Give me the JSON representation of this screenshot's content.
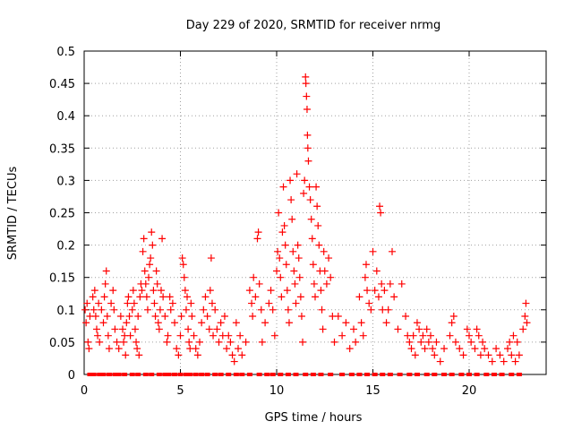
{
  "chart_data": {
    "type": "scatter",
    "title": "Day 229 of 2020, SRMTID for receiver nrmg",
    "xlabel": "GPS time / hours",
    "ylabel": "SRMTID / TECUs",
    "xlim": [
      0,
      24
    ],
    "ylim": [
      0,
      0.5
    ],
    "x_ticks": [
      0,
      5,
      10,
      15,
      20
    ],
    "x_tick_labels": [
      "0",
      "5",
      "10",
      "15",
      "20"
    ],
    "y_ticks": [
      0,
      0.05,
      0.1,
      0.15,
      0.2,
      0.25,
      0.3,
      0.35,
      0.4,
      0.45,
      0.5
    ],
    "y_tick_labels": [
      "0",
      "0.05",
      "0.1",
      "0.15",
      "0.2",
      "0.25",
      "0.3",
      "0.35",
      "0.4",
      "0.45",
      "0.5"
    ],
    "grid": true,
    "series": [
      {
        "name": "SRMTID",
        "marker": "+",
        "color": "#ff0000",
        "points": [
          [
            0.05,
            0.1
          ],
          [
            0.1,
            0.08
          ],
          [
            0.15,
            0.11
          ],
          [
            0.2,
            0.05
          ],
          [
            0.25,
            0.04
          ],
          [
            0.3,
            0.09
          ],
          [
            0.45,
            0.12
          ],
          [
            0.5,
            0.1
          ],
          [
            0.55,
            0.13
          ],
          [
            0.6,
            0.09
          ],
          [
            0.65,
            0.07
          ],
          [
            0.7,
            0.06
          ],
          [
            0.75,
            0.11
          ],
          [
            0.8,
            0.05
          ],
          [
            0.9,
            0.1
          ],
          [
            1.0,
            0.08
          ],
          [
            1.05,
            0.12
          ],
          [
            1.1,
            0.14
          ],
          [
            1.15,
            0.16
          ],
          [
            1.2,
            0.09
          ],
          [
            1.25,
            0.06
          ],
          [
            1.3,
            0.04
          ],
          [
            1.4,
            0.11
          ],
          [
            1.5,
            0.13
          ],
          [
            1.55,
            0.1
          ],
          [
            1.6,
            0.07
          ],
          [
            1.7,
            0.05
          ],
          [
            1.8,
            0.04
          ],
          [
            1.9,
            0.09
          ],
          [
            2.0,
            0.07
          ],
          [
            2.05,
            0.05
          ],
          [
            2.1,
            0.06
          ],
          [
            2.15,
            0.03
          ],
          [
            2.2,
            0.08
          ],
          [
            2.25,
            0.11
          ],
          [
            2.3,
            0.12
          ],
          [
            2.35,
            0.09
          ],
          [
            2.4,
            0.06
          ],
          [
            2.5,
            0.1
          ],
          [
            2.55,
            0.13
          ],
          [
            2.6,
            0.11
          ],
          [
            2.65,
            0.07
          ],
          [
            2.7,
            0.05
          ],
          [
            2.75,
            0.04
          ],
          [
            2.8,
            0.09
          ],
          [
            2.85,
            0.03
          ],
          [
            2.9,
            0.12
          ],
          [
            2.95,
            0.14
          ],
          [
            3.0,
            0.13
          ],
          [
            3.05,
            0.19
          ],
          [
            3.1,
            0.21
          ],
          [
            3.15,
            0.16
          ],
          [
            3.2,
            0.14
          ],
          [
            3.25,
            0.12
          ],
          [
            3.3,
            0.1
          ],
          [
            3.35,
            0.15
          ],
          [
            3.4,
            0.17
          ],
          [
            3.45,
            0.18
          ],
          [
            3.5,
            0.22
          ],
          [
            3.55,
            0.2
          ],
          [
            3.6,
            0.13
          ],
          [
            3.65,
            0.11
          ],
          [
            3.7,
            0.09
          ],
          [
            3.75,
            0.16
          ],
          [
            3.8,
            0.14
          ],
          [
            3.85,
            0.08
          ],
          [
            3.9,
            0.07
          ],
          [
            3.95,
            0.1
          ],
          [
            4.0,
            0.13
          ],
          [
            4.05,
            0.21
          ],
          [
            4.1,
            0.12
          ],
          [
            4.2,
            0.09
          ],
          [
            4.3,
            0.05
          ],
          [
            4.35,
            0.06
          ],
          [
            4.45,
            0.12
          ],
          [
            4.5,
            0.1
          ],
          [
            4.6,
            0.11
          ],
          [
            4.7,
            0.08
          ],
          [
            4.8,
            0.04
          ],
          [
            4.9,
            0.03
          ],
          [
            5.0,
            0.06
          ],
          [
            5.05,
            0.09
          ],
          [
            5.1,
            0.18
          ],
          [
            5.15,
            0.17
          ],
          [
            5.2,
            0.15
          ],
          [
            5.25,
            0.13
          ],
          [
            5.3,
            0.1
          ],
          [
            5.35,
            0.12
          ],
          [
            5.4,
            0.07
          ],
          [
            5.45,
            0.05
          ],
          [
            5.5,
            0.04
          ],
          [
            5.55,
            0.11
          ],
          [
            5.6,
            0.09
          ],
          [
            5.7,
            0.06
          ],
          [
            5.8,
            0.04
          ],
          [
            5.9,
            0.03
          ],
          [
            6.0,
            0.05
          ],
          [
            6.1,
            0.08
          ],
          [
            6.2,
            0.1
          ],
          [
            6.3,
            0.12
          ],
          [
            6.4,
            0.09
          ],
          [
            6.5,
            0.07
          ],
          [
            6.55,
            0.13
          ],
          [
            6.6,
            0.18
          ],
          [
            6.65,
            0.11
          ],
          [
            6.7,
            0.06
          ],
          [
            6.8,
            0.1
          ],
          [
            6.9,
            0.07
          ],
          [
            7.0,
            0.05
          ],
          [
            7.1,
            0.08
          ],
          [
            7.2,
            0.06
          ],
          [
            7.3,
            0.09
          ],
          [
            7.4,
            0.04
          ],
          [
            7.5,
            0.06
          ],
          [
            7.6,
            0.05
          ],
          [
            7.7,
            0.03
          ],
          [
            7.8,
            0.02
          ],
          [
            7.9,
            0.08
          ],
          [
            8.0,
            0.04
          ],
          [
            8.1,
            0.06
          ],
          [
            8.2,
            0.03
          ],
          [
            8.4,
            0.05
          ],
          [
            8.6,
            0.13
          ],
          [
            8.7,
            0.11
          ],
          [
            8.75,
            0.09
          ],
          [
            8.8,
            0.15
          ],
          [
            8.9,
            0.12
          ],
          [
            9.0,
            0.21
          ],
          [
            9.05,
            0.22
          ],
          [
            9.1,
            0.14
          ],
          [
            9.2,
            0.1
          ],
          [
            9.25,
            0.05
          ],
          [
            9.4,
            0.08
          ],
          [
            9.6,
            0.11
          ],
          [
            9.7,
            0.13
          ],
          [
            9.8,
            0.1
          ],
          [
            9.9,
            0.06
          ],
          [
            10.0,
            0.16
          ],
          [
            10.05,
            0.19
          ],
          [
            10.1,
            0.25
          ],
          [
            10.15,
            0.18
          ],
          [
            10.2,
            0.15
          ],
          [
            10.25,
            0.12
          ],
          [
            10.3,
            0.22
          ],
          [
            10.35,
            0.29
          ],
          [
            10.4,
            0.23
          ],
          [
            10.45,
            0.2
          ],
          [
            10.5,
            0.17
          ],
          [
            10.55,
            0.13
          ],
          [
            10.6,
            0.1
          ],
          [
            10.65,
            0.08
          ],
          [
            10.7,
            0.3
          ],
          [
            10.75,
            0.27
          ],
          [
            10.8,
            0.24
          ],
          [
            10.85,
            0.19
          ],
          [
            10.9,
            0.16
          ],
          [
            10.95,
            0.14
          ],
          [
            11.0,
            0.11
          ],
          [
            11.05,
            0.31
          ],
          [
            11.1,
            0.2
          ],
          [
            11.15,
            0.18
          ],
          [
            11.2,
            0.15
          ],
          [
            11.25,
            0.12
          ],
          [
            11.3,
            0.09
          ],
          [
            11.35,
            0.05
          ],
          [
            11.4,
            0.28
          ],
          [
            11.45,
            0.3
          ],
          [
            11.5,
            0.46
          ],
          [
            11.52,
            0.45
          ],
          [
            11.55,
            0.43
          ],
          [
            11.58,
            0.41
          ],
          [
            11.6,
            0.37
          ],
          [
            11.62,
            0.35
          ],
          [
            11.65,
            0.33
          ],
          [
            11.7,
            0.29
          ],
          [
            11.75,
            0.27
          ],
          [
            11.8,
            0.24
          ],
          [
            11.85,
            0.21
          ],
          [
            11.9,
            0.17
          ],
          [
            11.95,
            0.14
          ],
          [
            12.0,
            0.12
          ],
          [
            12.05,
            0.29
          ],
          [
            12.1,
            0.26
          ],
          [
            12.15,
            0.23
          ],
          [
            12.2,
            0.2
          ],
          [
            12.25,
            0.16
          ],
          [
            12.3,
            0.13
          ],
          [
            12.35,
            0.1
          ],
          [
            12.4,
            0.07
          ],
          [
            12.45,
            0.19
          ],
          [
            12.5,
            0.16
          ],
          [
            12.6,
            0.14
          ],
          [
            12.7,
            0.18
          ],
          [
            12.8,
            0.15
          ],
          [
            12.9,
            0.09
          ],
          [
            13.0,
            0.05
          ],
          [
            13.2,
            0.09
          ],
          [
            13.4,
            0.06
          ],
          [
            13.6,
            0.08
          ],
          [
            13.8,
            0.04
          ],
          [
            14.0,
            0.07
          ],
          [
            14.1,
            0.05
          ],
          [
            14.3,
            0.12
          ],
          [
            14.4,
            0.08
          ],
          [
            14.5,
            0.06
          ],
          [
            14.6,
            0.15
          ],
          [
            14.65,
            0.17
          ],
          [
            14.7,
            0.13
          ],
          [
            14.8,
            0.11
          ],
          [
            14.9,
            0.1
          ],
          [
            15.0,
            0.19
          ],
          [
            15.1,
            0.13
          ],
          [
            15.2,
            0.16
          ],
          [
            15.3,
            0.12
          ],
          [
            15.35,
            0.26
          ],
          [
            15.4,
            0.25
          ],
          [
            15.45,
            0.14
          ],
          [
            15.5,
            0.1
          ],
          [
            15.6,
            0.13
          ],
          [
            15.7,
            0.08
          ],
          [
            15.8,
            0.1
          ],
          [
            15.9,
            0.14
          ],
          [
            16.0,
            0.19
          ],
          [
            16.1,
            0.12
          ],
          [
            16.3,
            0.07
          ],
          [
            16.5,
            0.14
          ],
          [
            16.7,
            0.09
          ],
          [
            16.8,
            0.06
          ],
          [
            16.9,
            0.05
          ],
          [
            17.0,
            0.04
          ],
          [
            17.1,
            0.06
          ],
          [
            17.2,
            0.03
          ],
          [
            17.3,
            0.08
          ],
          [
            17.4,
            0.07
          ],
          [
            17.5,
            0.05
          ],
          [
            17.6,
            0.06
          ],
          [
            17.7,
            0.04
          ],
          [
            17.8,
            0.07
          ],
          [
            17.9,
            0.05
          ],
          [
            18.0,
            0.06
          ],
          [
            18.1,
            0.04
          ],
          [
            18.2,
            0.03
          ],
          [
            18.3,
            0.05
          ],
          [
            18.5,
            0.02
          ],
          [
            18.7,
            0.04
          ],
          [
            19.0,
            0.06
          ],
          [
            19.1,
            0.08
          ],
          [
            19.2,
            0.09
          ],
          [
            19.3,
            0.05
          ],
          [
            19.5,
            0.04
          ],
          [
            19.7,
            0.03
          ],
          [
            19.9,
            0.07
          ],
          [
            20.0,
            0.06
          ],
          [
            20.1,
            0.05
          ],
          [
            20.3,
            0.04
          ],
          [
            20.4,
            0.07
          ],
          [
            20.5,
            0.06
          ],
          [
            20.6,
            0.03
          ],
          [
            20.7,
            0.05
          ],
          [
            20.8,
            0.04
          ],
          [
            21.0,
            0.03
          ],
          [
            21.2,
            0.02
          ],
          [
            21.4,
            0.04
          ],
          [
            21.6,
            0.03
          ],
          [
            21.8,
            0.02
          ],
          [
            22.0,
            0.04
          ],
          [
            22.1,
            0.05
          ],
          [
            22.2,
            0.03
          ],
          [
            22.3,
            0.06
          ],
          [
            22.4,
            0.02
          ],
          [
            22.5,
            0.05
          ],
          [
            22.6,
            0.03
          ],
          [
            22.8,
            0.07
          ],
          [
            22.9,
            0.09
          ],
          [
            22.95,
            0.11
          ],
          [
            23.0,
            0.08
          ]
        ]
      }
    ],
    "zero_values_x": [
      0.3,
      0.5,
      0.8,
      1.0,
      1.3,
      1.6,
      1.8,
      2.1,
      2.5,
      2.8,
      3.2,
      3.5,
      3.9,
      4.2,
      4.4,
      4.7,
      5.0,
      5.3,
      5.5,
      5.8,
      6.1,
      6.4,
      6.8,
      7.1,
      7.5,
      7.9,
      8.2,
      8.6,
      9.1,
      9.5,
      9.8,
      10.2,
      10.6,
      11.0,
      11.5,
      11.9,
      12.3,
      12.8,
      13.4,
      13.9,
      14.3,
      14.7,
      15.1,
      15.5,
      15.9,
      16.4,
      16.9,
      17.3,
      17.8,
      18.2,
      18.7,
      19.1,
      19.6,
      20.0,
      20.4,
      20.9,
      21.3,
      21.7,
      22.2,
      22.6
    ]
  }
}
